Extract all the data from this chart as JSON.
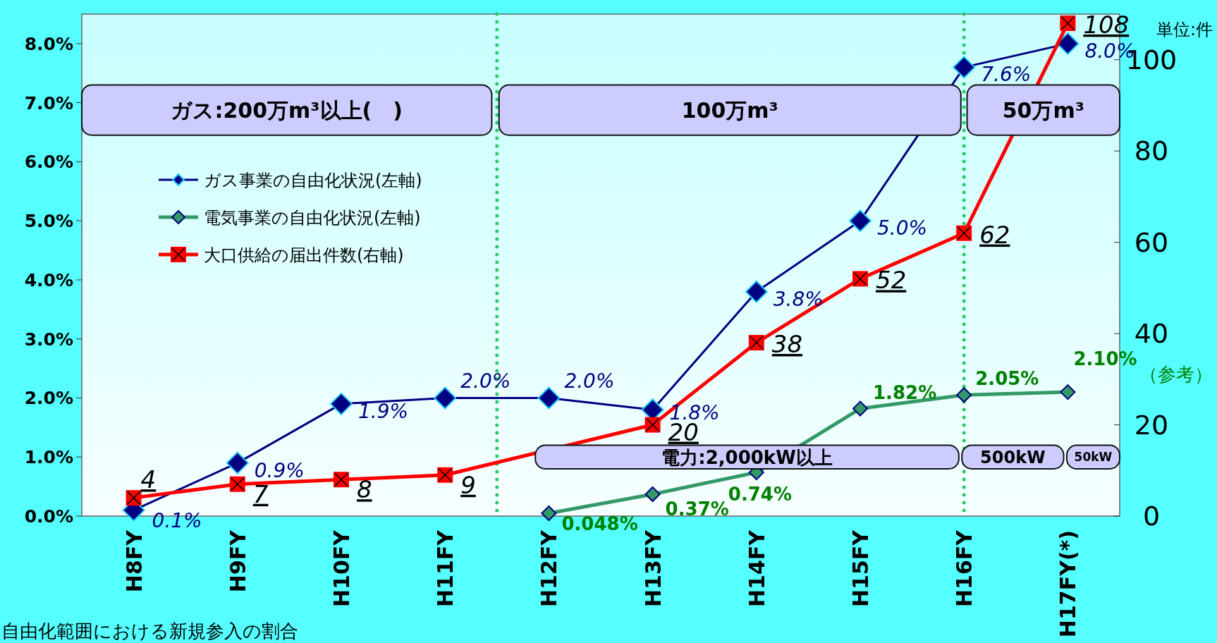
{
  "chart_data": {
    "type": "line",
    "categories": [
      "H8FY",
      "H9FY",
      "H10FY",
      "H11FY",
      "H12FY",
      "H13FY",
      "H14FY",
      "H15FY",
      "H16FY",
      "H17FY(*)"
    ],
    "ylim": [
      0,
      8.5
    ],
    "yticks": [
      {
        "value": 0,
        "label": "0.0%"
      },
      {
        "value": 1,
        "label": "1.0%"
      },
      {
        "value": 2,
        "label": "2.0%"
      },
      {
        "value": 3,
        "label": "3.0%"
      },
      {
        "value": 4,
        "label": "4.0%"
      },
      {
        "value": 5,
        "label": "5.0%"
      },
      {
        "value": 6,
        "label": "6.0%"
      },
      {
        "value": 7,
        "label": "7.0%"
      },
      {
        "value": 8,
        "label": "8.0%"
      }
    ],
    "y2lim": [
      0,
      110
    ],
    "y2ticks": [
      0,
      20,
      40,
      60,
      80,
      100
    ],
    "legend": "top left",
    "grid": false,
    "line_style": "solid",
    "series": [
      {
        "name": "ガス事業の自由化状況(左軸)",
        "color": "#000080",
        "marker": "diamond",
        "values": [
          0.1,
          0.9,
          1.9,
          2.0,
          2.0,
          1.8,
          3.8,
          5.0,
          7.6,
          8.0
        ],
        "value_labels": [
          "0.1%",
          "0.9%",
          "1.9%",
          "2.0%",
          "2.0%",
          "1.8%",
          "3.8%",
          "5.0%",
          "7.6%",
          "8.0%"
        ]
      },
      {
        "name": "電気事業の自由化状況(左軸)",
        "color": "#339966",
        "marker": "diamond",
        "values": [
          null,
          null,
          null,
          null,
          0.048,
          0.37,
          0.74,
          1.82,
          2.05,
          2.1
        ],
        "value_labels": [
          null,
          null,
          null,
          null,
          "0.048%",
          "0.37%",
          "0.74%",
          "1.82%",
          "2.05%",
          "2.10%"
        ]
      },
      {
        "name": "大口供給の届出件数(右軸)",
        "color": "#ff0000",
        "marker": "square",
        "axis": "y2",
        "values": [
          4,
          7,
          8,
          9,
          null,
          20,
          38,
          52,
          62,
          108
        ],
        "value_labels": [
          "4",
          "7",
          "8",
          "9",
          null,
          "20",
          "38",
          "52",
          "62",
          "108"
        ]
      }
    ],
    "ref_lines": [
      {
        "axis": "x",
        "value": "H16FY",
        "color": "#22cc66",
        "line_style": "dotted"
      }
    ],
    "annotations": [
      "ガス:200万m³以上(　)",
      "100万m³",
      "50万m³",
      "電力:2,000kW以上",
      "500kW",
      "50kW",
      "単位:件",
      "（参考）",
      "自由化範囲における新規参入の割合"
    ]
  }
}
